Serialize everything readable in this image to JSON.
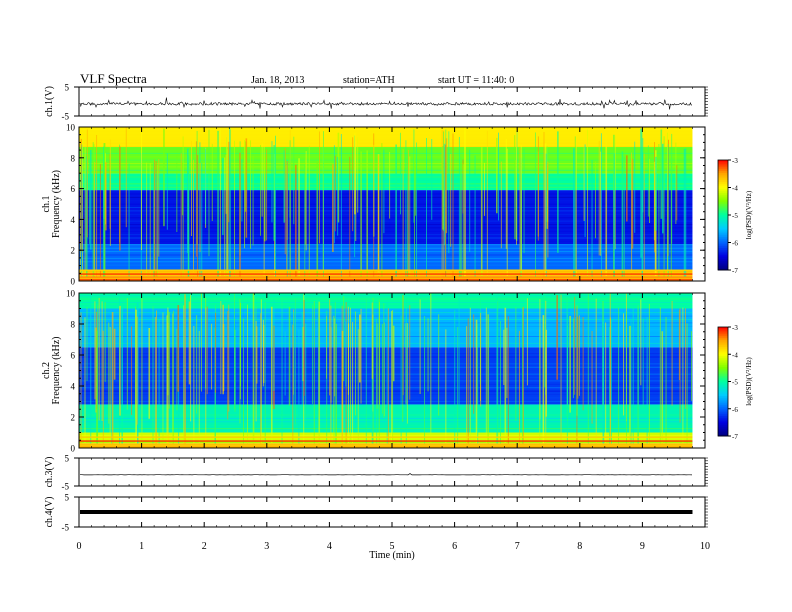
{
  "header": {
    "title": "VLF Spectra",
    "date": "Jan. 18, 2013",
    "station": "station=ATH",
    "start": "start  UT =   11:40: 0"
  },
  "colors": {
    "spectrogram": [
      "#000080",
      "#0000e0",
      "#0066ff",
      "#00ccff",
      "#00ffa0",
      "#7fff00",
      "#ffff00",
      "#ffa500",
      "#ff0000",
      "#ffffff"
    ]
  },
  "chart_data": [
    {
      "type": "line",
      "panel": "ch1-waveform",
      "ylabel": "ch.1(V)",
      "yticks": [
        "5",
        "-5"
      ],
      "ylim": [
        -5,
        5
      ],
      "xlim": [
        0,
        10
      ],
      "description_value": "dense noisy trace around -0.8 V with spikes to about +/-1.6 V, data to ~9.8 min"
    },
    {
      "type": "heatmap",
      "panel": "ch1-spectrogram",
      "ylabel": "Frequency (kHz)",
      "channel_label": "ch.1",
      "yticks": [
        "0",
        "2",
        "4",
        "6",
        "8",
        "10"
      ],
      "ylim": [
        0,
        10
      ],
      "xlim": [
        0,
        10
      ],
      "colorbar": {
        "label": "log(PSD)(V²/Hz)",
        "ticks": [
          "-3",
          "-4",
          "-5",
          "-6",
          "-7"
        ],
        "range": [
          -7,
          -3
        ]
      },
      "bands": [
        {
          "f_from": 0.0,
          "f_to": 0.3,
          "level": -3.3
        },
        {
          "f_from": 0.3,
          "f_to": 0.7,
          "level": -3.8
        },
        {
          "f_from": 0.7,
          "f_to": 2.4,
          "level": -6.0
        },
        {
          "f_from": 2.4,
          "f_to": 5.9,
          "level": -6.4
        },
        {
          "f_from": 5.9,
          "f_to": 7.0,
          "level": -5.0
        },
        {
          "f_from": 7.0,
          "f_to": 8.7,
          "level": -4.6
        },
        {
          "f_from": 8.7,
          "f_to": 10.0,
          "level": -3.9
        }
      ]
    },
    {
      "type": "heatmap",
      "panel": "ch2-spectrogram",
      "ylabel": "Frequency (kHz)",
      "channel_label": "ch.2",
      "yticks": [
        "0",
        "2",
        "4",
        "6",
        "8",
        "10"
      ],
      "ylim": [
        0,
        10
      ],
      "xlim": [
        0,
        10
      ],
      "colorbar": {
        "label": "log(PSD)(V²/Hz)",
        "ticks": [
          "-3",
          "-4",
          "-5",
          "-6",
          "-7"
        ],
        "range": [
          -7,
          -3
        ]
      },
      "bands": [
        {
          "f_from": 0.0,
          "f_to": 0.3,
          "level": -3.6
        },
        {
          "f_from": 0.3,
          "f_to": 1.0,
          "level": -4.2
        },
        {
          "f_from": 1.0,
          "f_to": 2.8,
          "level": -5.1
        },
        {
          "f_from": 2.8,
          "f_to": 6.5,
          "level": -6.2
        },
        {
          "f_from": 6.5,
          "f_to": 9.0,
          "level": -5.6
        },
        {
          "f_from": 9.0,
          "f_to": 10.0,
          "level": -5.0
        }
      ]
    },
    {
      "type": "line",
      "panel": "ch3-waveform",
      "ylabel": "ch.3(V)",
      "yticks": [
        "5",
        "-5"
      ],
      "ylim": [
        -5,
        5
      ],
      "xlim": [
        0,
        10
      ],
      "description_value": "flat trace near -1 V"
    },
    {
      "type": "line",
      "panel": "ch4-waveform",
      "ylabel": "ch.4(V)",
      "yticks": [
        "5",
        "-5"
      ],
      "ylim": [
        -5,
        5
      ],
      "xlim": [
        0,
        10
      ],
      "description_value": "thick flat trace near 0 V"
    }
  ],
  "xaxis": {
    "label": "Time (min)",
    "ticks": [
      "0",
      "1",
      "2",
      "3",
      "4",
      "5",
      "6",
      "7",
      "8",
      "9",
      "10"
    ]
  }
}
